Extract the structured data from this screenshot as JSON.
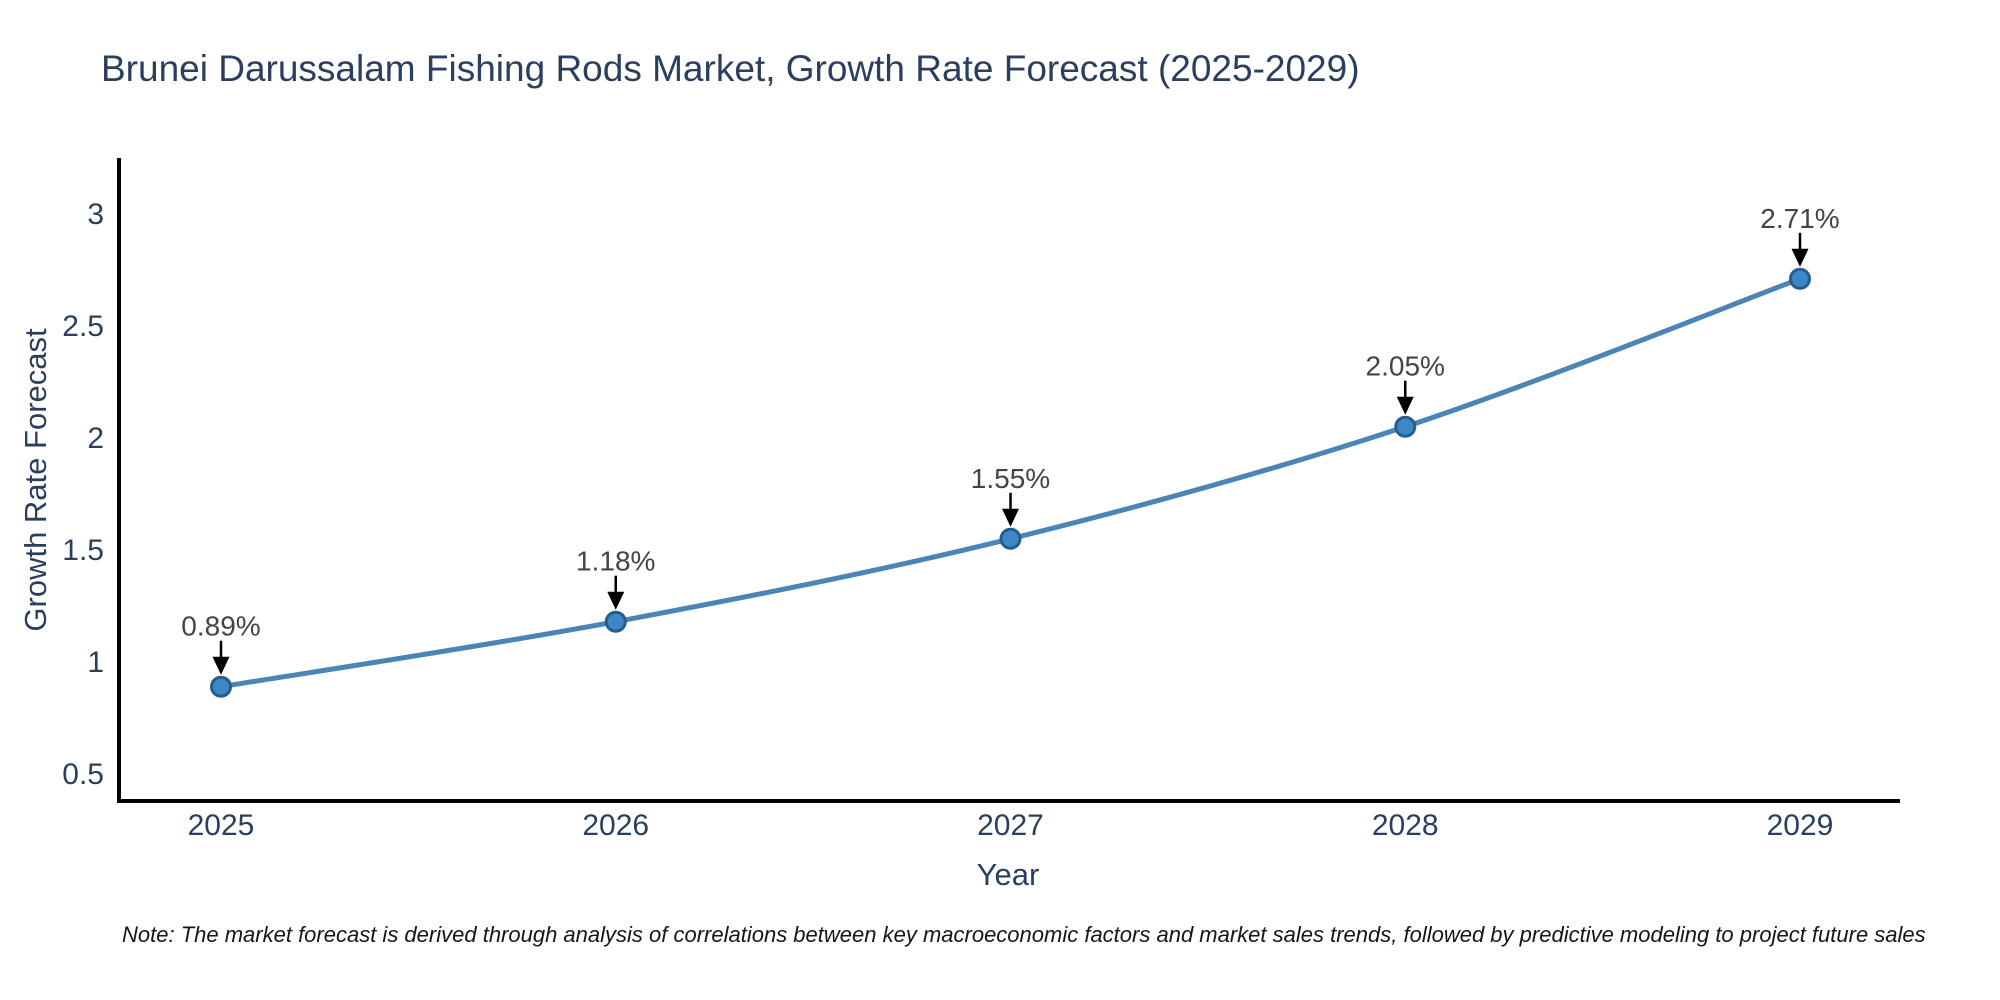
{
  "chart_data": {
    "type": "line",
    "title": "Brunei Darussalam Fishing Rods Market, Growth Rate Forecast (2025-2029)",
    "xlabel": "Year",
    "ylabel": "Growth Rate Forecast",
    "categories": [
      "2025",
      "2026",
      "2027",
      "2028",
      "2029"
    ],
    "series": [
      {
        "name": "Growth Rate Forecast",
        "values": [
          0.89,
          1.18,
          1.55,
          2.05,
          2.71
        ]
      }
    ],
    "point_labels": [
      "0.89%",
      "1.18%",
      "1.55%",
      "2.05%",
      "2.71%"
    ],
    "yticks": [
      0.5,
      1,
      1.5,
      2,
      2.5,
      3
    ],
    "ylim": [
      0.38,
      3.24
    ],
    "grid": false,
    "legend": "none",
    "line_shape": "spline",
    "colors": {
      "line": "#4a85b5",
      "marker_fill": "#3d87c6",
      "marker_stroke": "#265d8c",
      "arrow": "#000000",
      "axis_line": "#000000",
      "axis_text": "#2a3f5f",
      "annotation_text": "#444444"
    }
  },
  "footnote": "Note: The market forecast is derived through analysis of correlations between key macroeconomic factors and market sales trends, followed by predictive modeling to project future sales"
}
